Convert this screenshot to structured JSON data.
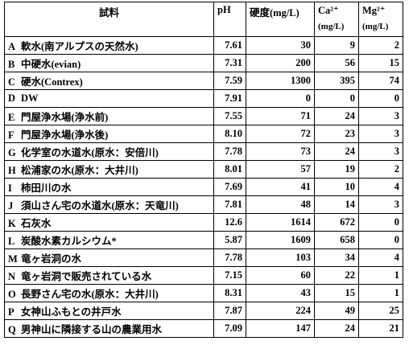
{
  "table": {
    "header": [
      "試料",
      "pH",
      "硬度(mg/L)",
      "Ca²⁺",
      "Mg²⁺"
    ],
    "units": [
      "(mg/L)",
      "(mg/L)"
    ],
    "rows": [
      [
        "A",
        "軟水(南アルプスの天然水)",
        "7.61",
        "30",
        "9",
        "2"
      ],
      [
        "B",
        "中硬水(evian)",
        "7.31",
        "200",
        "56",
        "15"
      ],
      [
        "C",
        "硬水(Contrex)",
        "7.59",
        "1300",
        "395",
        "74"
      ],
      [
        "D",
        "DW",
        "7.91",
        "0",
        "0",
        "0"
      ],
      [
        "E",
        "門屋浄水場(浄水前)",
        "7.55",
        "71",
        "24",
        "3"
      ],
      [
        "F",
        "門屋浄水場(浄水後)",
        "8.10",
        "72",
        "23",
        "3"
      ],
      [
        "G",
        "化学室の水道水(原水：安倍川)",
        "7.78",
        "73",
        "24",
        "3"
      ],
      [
        "H",
        "松浦家の水(原水：大井川)",
        "8.01",
        "57",
        "19",
        "2"
      ],
      [
        "I",
        "柿田川の水",
        "7.69",
        "41",
        "10",
        "4"
      ],
      [
        "J",
        "須山さん宅の水道水(原水：天竜川)",
        "7.81",
        "48",
        "14",
        "3"
      ],
      [
        "K",
        "石灰水",
        "12.6",
        "1614",
        "672",
        "0"
      ],
      [
        "L",
        "炭酸水素カルシウム*",
        "5.87",
        "1609",
        "658",
        "0"
      ],
      [
        "M",
        "竜ヶ岩洞の水",
        "7.78",
        "103",
        "34",
        "4"
      ],
      [
        "N",
        "竜ヶ岩洞で販売されている水",
        "7.15",
        "60",
        "22",
        "1"
      ],
      [
        "O",
        "長野さん宅の水(原水：大井川)",
        "8.31",
        "43",
        "15",
        "1"
      ],
      [
        "P",
        "女神山ふもとの井戸水",
        "7.87",
        "224",
        "49",
        "25"
      ],
      [
        "Q",
        "男神山に隣接する山の農業用水",
        "7.09",
        "147",
        "24",
        "21"
      ]
    ]
  }
}
